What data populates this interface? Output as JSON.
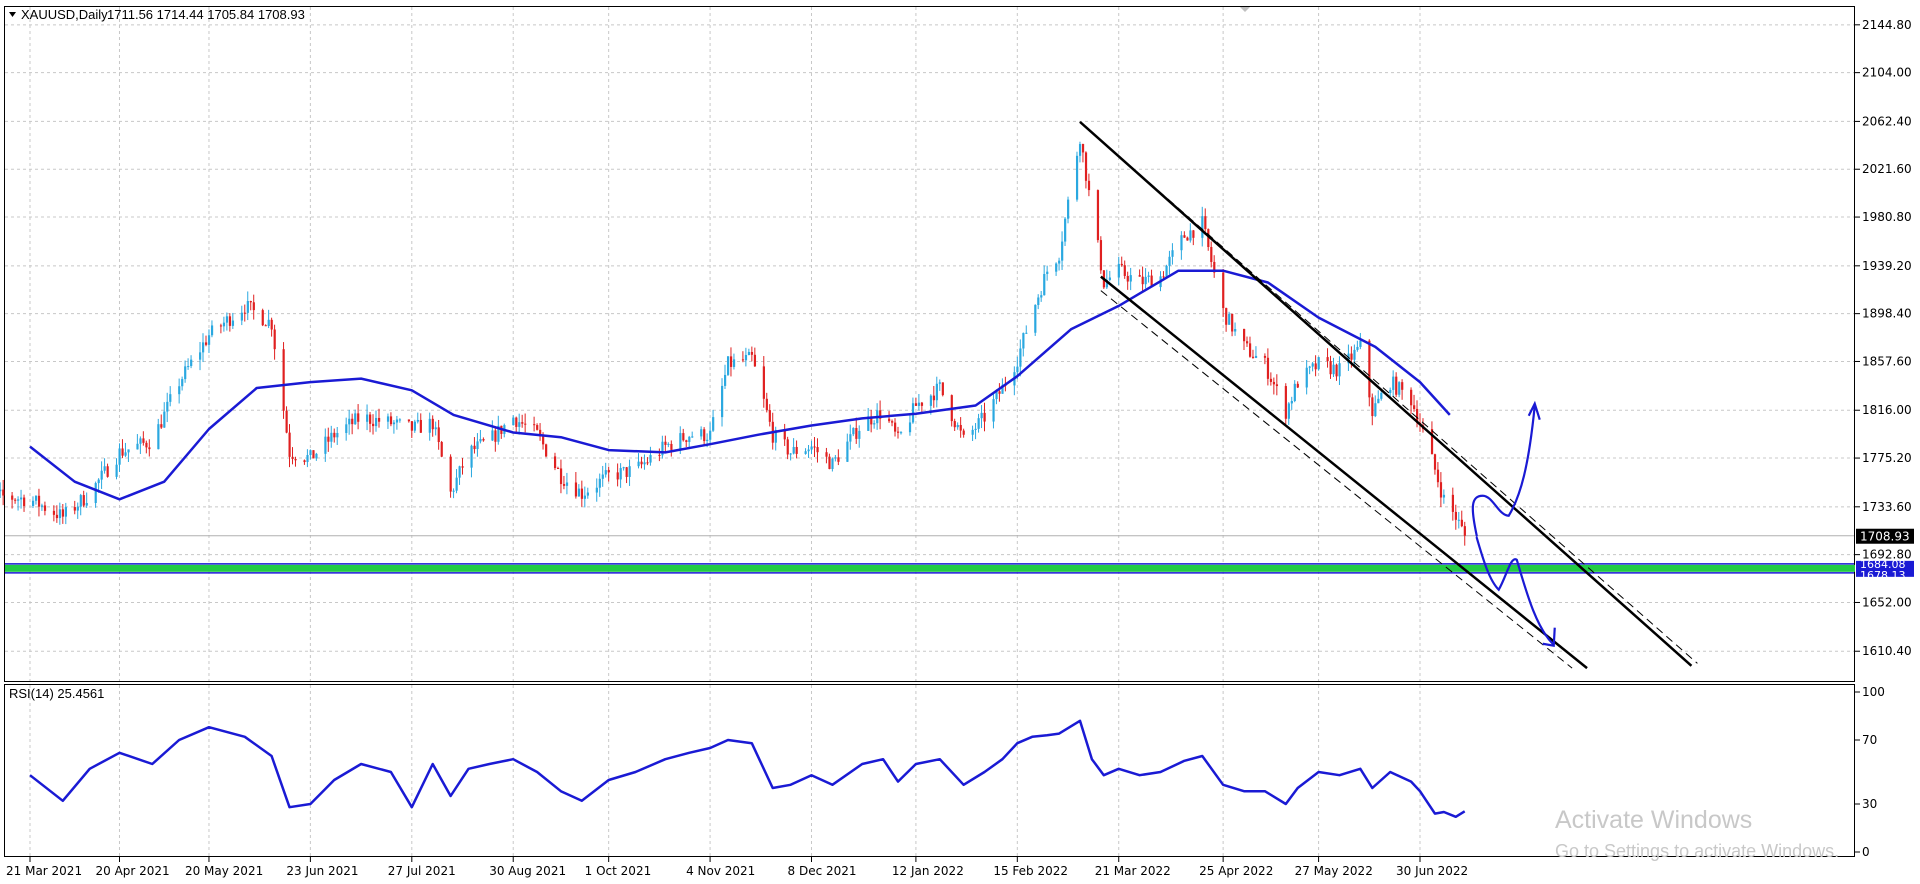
{
  "header": {
    "symbol_label": "XAUUSD,Daily",
    "ohlc_text": "1711.56 1714.44 1705.84 1708.93"
  },
  "rsi_header": {
    "label": "RSI(14) 25.4561"
  },
  "watermark": {
    "line1": "Activate Windows",
    "line2": "Go to Settings to activate Windows."
  },
  "colors": {
    "bull": "#2aa8e0",
    "bear": "#e02020",
    "ma": "#1a1ad4",
    "channel": "#000000",
    "support_zone": "#22cc44",
    "support_line": "#1a1ad4",
    "rsi": "#1a1ad4",
    "grid": "#c8c8c8"
  },
  "chart_data": [
    {
      "type": "candlestick",
      "symbol": "XAUUSD",
      "timeframe": "Daily",
      "last_price": 1708.93,
      "last_price_label": "1708.93",
      "ylim": [
        1585,
        2160
      ],
      "price_ticks": [
        "2144.80",
        "2104.00",
        "2062.40",
        "2021.60",
        "1980.80",
        "1939.20",
        "1898.40",
        "1857.60",
        "1816.00",
        "1775.20",
        "1733.60",
        "1692.80",
        "1652.00",
        "1610.40"
      ],
      "date_ticks": [
        "21 Mar 2021",
        "20 Apr 2021",
        "20 May 2021",
        "23 Jun 2021",
        "27 Jul 2021",
        "30 Aug 2021",
        "1 Oct 2021",
        "4 Nov 2021",
        "8 Dec 2021",
        "12 Jan 2022",
        "15 Feb 2022",
        "21 Mar 2022",
        "25 Apr 2022",
        "27 May 2022",
        "30 Jun 2022"
      ],
      "close_path": [
        [
          "21 Mar 2021",
          1740
        ],
        [
          "1 Apr 2021",
          1725
        ],
        [
          "10 Apr 2021",
          1745
        ],
        [
          "20 Apr 2021",
          1780
        ],
        [
          "1 May 2021",
          1790
        ],
        [
          "10 May 2021",
          1840
        ],
        [
          "20 May 2021",
          1880
        ],
        [
          "1 Jun 2021",
          1905
        ],
        [
          "10 Jun 2021",
          1890
        ],
        [
          "16 Jun 2021",
          1780
        ],
        [
          "23 Jun 2021",
          1775
        ],
        [
          "1 Jul 2021",
          1795
        ],
        [
          "10 Jul 2021",
          1810
        ],
        [
          "20 Jul 2021",
          1805
        ],
        [
          "27 Jul 2021",
          1800
        ],
        [
          "3 Aug 2021",
          1805
        ],
        [
          "9 Aug 2021",
          1745
        ],
        [
          "15 Aug 2021",
          1780
        ],
        [
          "22 Aug 2021",
          1790
        ],
        [
          "30 Aug 2021",
          1810
        ],
        [
          "7 Sep 2021",
          1795
        ],
        [
          "15 Sep 2021",
          1760
        ],
        [
          "22 Sep 2021",
          1745
        ],
        [
          "1 Oct 2021",
          1760
        ],
        [
          "10 Oct 2021",
          1765
        ],
        [
          "20 Oct 2021",
          1785
        ],
        [
          "28 Oct 2021",
          1795
        ],
        [
          "4 Nov 2021",
          1795
        ],
        [
          "10 Nov 2021",
          1855
        ],
        [
          "18 Nov 2021",
          1860
        ],
        [
          "25 Nov 2021",
          1795
        ],
        [
          "1 Dec 2021",
          1780
        ],
        [
          "8 Dec 2021",
          1785
        ],
        [
          "15 Dec 2021",
          1770
        ],
        [
          "25 Dec 2021",
          1805
        ],
        [
          "1 Jan 2022",
          1815
        ],
        [
          "6 Jan 2022",
          1790
        ],
        [
          "12 Jan 2022",
          1820
        ],
        [
          "20 Jan 2022",
          1835
        ],
        [
          "28 Jan 2022",
          1790
        ],
        [
          "4 Feb 2022",
          1810
        ],
        [
          "10 Feb 2022",
          1835
        ],
        [
          "15 Feb 2022",
          1860
        ],
        [
          "20 Feb 2022",
          1900
        ],
        [
          "25 Feb 2022",
          1935
        ],
        [
          "1 Mar 2022",
          1950
        ],
        [
          "8 Mar 2022",
          2050
        ],
        [
          "12 Mar 2022",
          1985
        ],
        [
          "16 Mar 2022",
          1925
        ],
        [
          "21 Mar 2022",
          1935
        ],
        [
          "28 Mar 2022",
          1925
        ],
        [
          "4 Apr 2022",
          1930
        ],
        [
          "12 Apr 2022",
          1965
        ],
        [
          "18 Apr 2022",
          1975
        ],
        [
          "25 Apr 2022",
          1900
        ],
        [
          "2 May 2022",
          1870
        ],
        [
          "9 May 2022",
          1855
        ],
        [
          "16 May 2022",
          1815
        ],
        [
          "20 May 2022",
          1840
        ],
        [
          "27 May 2022",
          1855
        ],
        [
          "3 Jun 2022",
          1850
        ],
        [
          "10 Jun 2022",
          1870
        ],
        [
          "14 Jun 2022",
          1815
        ],
        [
          "20 Jun 2022",
          1840
        ],
        [
          "27 Jun 2022",
          1825
        ],
        [
          "30 Jun 2022",
          1805
        ],
        [
          "5 Jul 2022",
          1765
        ],
        [
          "8 Jul 2022",
          1740
        ],
        [
          "12 Jul 2022",
          1725
        ],
        [
          "15 Jul 2022",
          1708.93
        ]
      ],
      "moving_average": [
        [
          "21 Mar 2021",
          1785
        ],
        [
          "5 Apr 2021",
          1755
        ],
        [
          "20 Apr 2021",
          1740
        ],
        [
          "5 May 2021",
          1755
        ],
        [
          "20 May 2021",
          1800
        ],
        [
          "5 Jun 2021",
          1835
        ],
        [
          "23 Jun 2021",
          1840
        ],
        [
          "10 Jul 2021",
          1843
        ],
        [
          "27 Jul 2021",
          1833
        ],
        [
          "10 Aug 2021",
          1812
        ],
        [
          "30 Aug 2021",
          1797
        ],
        [
          "15 Sep 2021",
          1793
        ],
        [
          "1 Oct 2021",
          1782
        ],
        [
          "20 Oct 2021",
          1780
        ],
        [
          "4 Nov 2021",
          1787
        ],
        [
          "20 Nov 2021",
          1795
        ],
        [
          "8 Dec 2021",
          1803
        ],
        [
          "25 Dec 2021",
          1809
        ],
        [
          "12 Jan 2022",
          1813
        ],
        [
          "1 Feb 2022",
          1820
        ],
        [
          "15 Feb 2022",
          1845
        ],
        [
          "5 Mar 2022",
          1885
        ],
        [
          "21 Mar 2022",
          1905
        ],
        [
          "10 Apr 2022",
          1935
        ],
        [
          "25 Apr 2022",
          1935
        ],
        [
          "10 May 2022",
          1925
        ],
        [
          "27 May 2022",
          1895
        ],
        [
          "15 Jun 2022",
          1870
        ],
        [
          "30 Jun 2022",
          1840
        ],
        [
          "10 Jul 2022",
          1812
        ]
      ],
      "support_zone": {
        "from": 1678.13,
        "to": 1684.08,
        "labels": [
          "1684.08",
          "1678.13"
        ]
      },
      "annotations": [
        {
          "type": "channel_upper",
          "from": [
            "8 Mar 2022",
            2062
          ],
          "to": [
            "29 Sep 2022",
            1598
          ]
        },
        {
          "type": "channel_lower",
          "from": [
            "15 Mar 2022",
            1930
          ],
          "to": [
            "25 Aug 2022",
            1596
          ]
        },
        {
          "type": "dashed_upper",
          "from": [
            "8 Mar 2022",
            2062
          ],
          "to": [
            "1 Oct 2022",
            1600
          ]
        },
        {
          "type": "dashed_lower",
          "from": [
            "15 Mar 2022",
            1918
          ],
          "to": [
            "20 Aug 2022",
            1596
          ]
        }
      ]
    },
    {
      "type": "line",
      "name": "RSI(14)",
      "current_value": 25.4561,
      "ylim": [
        0,
        100
      ],
      "ticks": [
        "100",
        "70",
        "30",
        "0"
      ],
      "values": [
        [
          "21 Mar 2021",
          48
        ],
        [
          "1 Apr 2021",
          32
        ],
        [
          "10 Apr 2021",
          52
        ],
        [
          "20 Apr 2021",
          62
        ],
        [
          "1 May 2021",
          55
        ],
        [
          "10 May 2021",
          70
        ],
        [
          "20 May 2021",
          78
        ],
        [
          "1 Jun 2021",
          72
        ],
        [
          "10 Jun 2021",
          60
        ],
        [
          "16 Jun 2021",
          28
        ],
        [
          "23 Jun 2021",
          30
        ],
        [
          "1 Jul 2021",
          45
        ],
        [
          "10 Jul 2021",
          55
        ],
        [
          "20 Jul 2021",
          50
        ],
        [
          "27 Jul 2021",
          28
        ],
        [
          "3 Aug 2021",
          55
        ],
        [
          "9 Aug 2021",
          35
        ],
        [
          "15 Aug 2021",
          52
        ],
        [
          "22 Aug 2021",
          55
        ],
        [
          "30 Aug 2021",
          58
        ],
        [
          "7 Sep 2021",
          50
        ],
        [
          "15 Sep 2021",
          38
        ],
        [
          "22 Sep 2021",
          32
        ],
        [
          "1 Oct 2021",
          45
        ],
        [
          "10 Oct 2021",
          50
        ],
        [
          "20 Oct 2021",
          58
        ],
        [
          "28 Oct 2021",
          62
        ],
        [
          "4 Nov 2021",
          65
        ],
        [
          "10 Nov 2021",
          70
        ],
        [
          "18 Nov 2021",
          68
        ],
        [
          "25 Nov 2021",
          40
        ],
        [
          "1 Dec 2021",
          42
        ],
        [
          "8 Dec 2021",
          48
        ],
        [
          "15 Dec 2021",
          42
        ],
        [
          "25 Dec 2021",
          55
        ],
        [
          "1 Jan 2022",
          58
        ],
        [
          "6 Jan 2022",
          44
        ],
        [
          "12 Jan 2022",
          55
        ],
        [
          "20 Jan 2022",
          58
        ],
        [
          "28 Jan 2022",
          42
        ],
        [
          "4 Feb 2022",
          50
        ],
        [
          "10 Feb 2022",
          58
        ],
        [
          "15 Feb 2022",
          68
        ],
        [
          "20 Feb 2022",
          72
        ],
        [
          "25 Feb 2022",
          73
        ],
        [
          "1 Mar 2022",
          74
        ],
        [
          "8 Mar 2022",
          82
        ],
        [
          "12 Mar 2022",
          58
        ],
        [
          "16 Mar 2022",
          48
        ],
        [
          "21 Mar 2022",
          52
        ],
        [
          "28 Mar 2022",
          48
        ],
        [
          "4 Apr 2022",
          50
        ],
        [
          "12 Apr 2022",
          57
        ],
        [
          "18 Apr 2022",
          60
        ],
        [
          "25 Apr 2022",
          42
        ],
        [
          "2 May 2022",
          38
        ],
        [
          "9 May 2022",
          38
        ],
        [
          "16 May 2022",
          30
        ],
        [
          "20 May 2022",
          40
        ],
        [
          "27 May 2022",
          50
        ],
        [
          "3 Jun 2022",
          48
        ],
        [
          "10 Jun 2022",
          52
        ],
        [
          "14 Jun 2022",
          40
        ],
        [
          "20 Jun 2022",
          50
        ],
        [
          "27 Jun 2022",
          44
        ],
        [
          "30 Jun 2022",
          38
        ],
        [
          "5 Jul 2022",
          24
        ],
        [
          "8 Jul 2022",
          25
        ],
        [
          "12 Jul 2022",
          22
        ],
        [
          "15 Jul 2022",
          25.4561
        ]
      ]
    }
  ]
}
